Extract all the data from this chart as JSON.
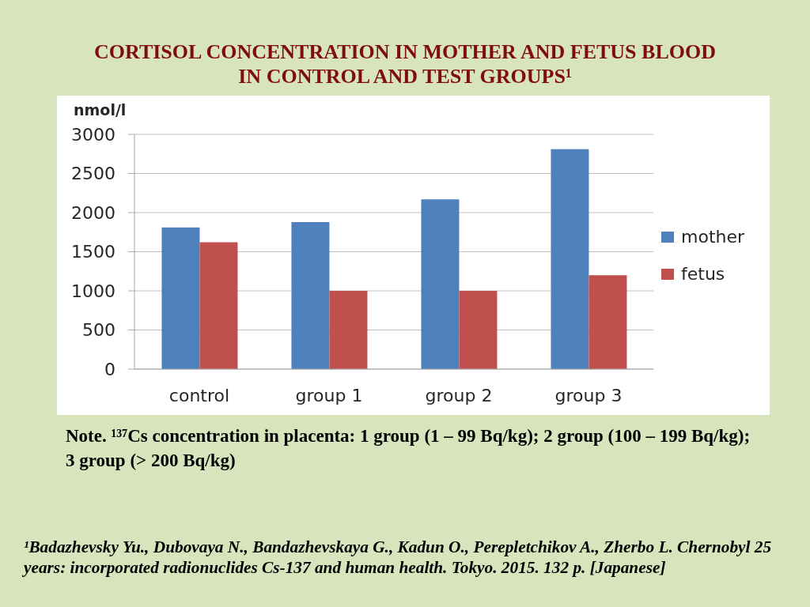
{
  "chart_data": {
    "type": "bar",
    "title": "CORTISOL CONCENTRATION IN MOTHER AND FETUS BLOOD\nIN CONTROL AND TEST GROUPS¹",
    "ylabel": "nmol/l",
    "categories": [
      "control",
      "group 1",
      "group 2",
      "group 3"
    ],
    "series": [
      {
        "name": "mother",
        "color": "#4f81bd",
        "values": [
          1810,
          1880,
          2170,
          2810
        ]
      },
      {
        "name": "fetus",
        "color": "#c0504d",
        "values": [
          1620,
          1000,
          1000,
          1200
        ]
      }
    ],
    "ylim": [
      0,
      3000
    ],
    "yticks": [
      0,
      500,
      1000,
      1500,
      2000,
      2500,
      3000
    ],
    "grid": "y",
    "legend": "right",
    "annotations": [
      "Note. ¹³⁷Cs concentration in placenta: 1 group (1 – 99 Bq/kg); 2 group (100 – 199 Bq/kg); 3 group (> 200 Bq/kg)",
      "¹Badazhevsky Yu., Dubovaya N., Bandazhevskaya G., Kadun O., Perepletchikov A., Zherbo L. Chernobyl 25 years: incorporated radionuclides Cs-137 and human health.  Tokyo. 2015. 132 p. [Japanese]"
    ]
  }
}
